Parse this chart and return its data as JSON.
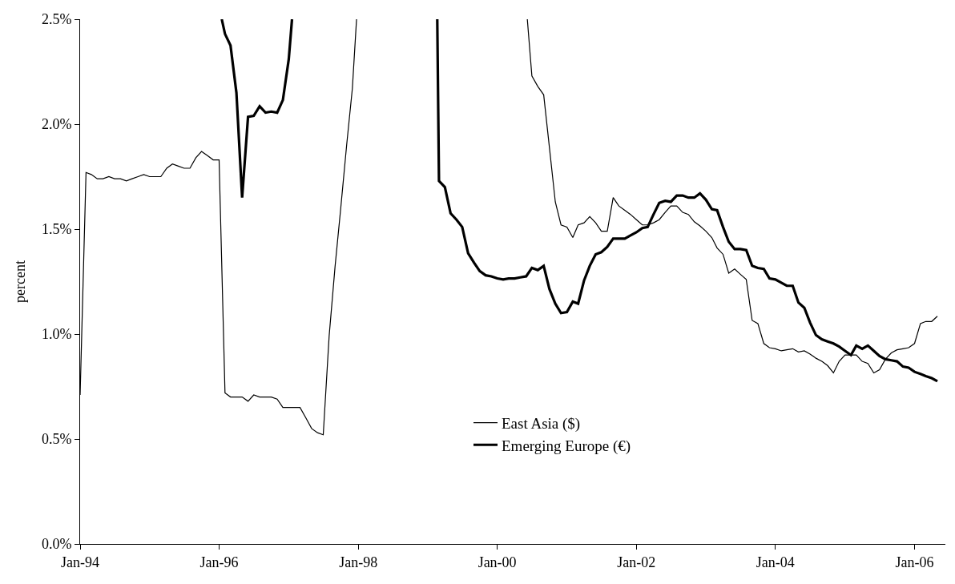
{
  "chart_data": {
    "type": "line",
    "ylabel": "percent",
    "xlim": [
      "1994-01-01",
      "2006-06-12"
    ],
    "xticks": [
      {
        "value": "1994-01-01",
        "label": "Jan-94"
      },
      {
        "value": "1996-01-01",
        "label": "Jan-96"
      },
      {
        "value": "1998-01-01",
        "label": "Jan-98"
      },
      {
        "value": "2000-01-01",
        "label": "Jan-00"
      },
      {
        "value": "2002-01-01",
        "label": "Jan-02"
      },
      {
        "value": "2004-01-01",
        "label": "Jan-04"
      },
      {
        "value": "2006-01-01",
        "label": "Jan-06"
      }
    ],
    "ylim": [
      0,
      2.5
    ],
    "yticks": [
      {
        "value": 0,
        "label": "0.0%"
      },
      {
        "value": 0.5,
        "label": "0.5%"
      },
      {
        "value": 1.0,
        "label": "1.0%"
      },
      {
        "value": 1.5,
        "label": "1.5%"
      },
      {
        "value": 2.0,
        "label": "2.0%"
      },
      {
        "value": 2.5,
        "label": "2.5%"
      }
    ],
    "legend": "bottom",
    "marker": "none",
    "line_style": "solid",
    "series": [
      {
        "name": "East Asia ($)",
        "color": "#000000",
        "x": [
          "1994-01",
          "1994-02",
          "1994-03",
          "1994-04",
          "1994-05",
          "1994-06",
          "1994-07",
          "1994-08",
          "1994-09",
          "1994-10",
          "1994-11",
          "1994-12",
          "1995-01",
          "1995-02",
          "1995-03",
          "1995-04",
          "1995-05",
          "1995-06",
          "1995-07",
          "1995-08",
          "1995-09",
          "1995-10",
          "1995-11",
          "1995-12",
          "1996-01",
          "1996-02",
          "1996-03",
          "1996-04",
          "1996-05",
          "1996-06",
          "1996-07",
          "1996-08",
          "1996-09",
          "1996-10",
          "1996-11",
          "1996-12",
          "1997-01",
          "1997-02",
          "1997-03",
          "1997-04",
          "1997-05",
          "1997-06",
          "1997-07",
          "1997-08",
          "1997-09",
          "1997-10",
          "1997-11",
          "1997-12",
          "1997-12-23",
          "1999-01",
          "2000-06-07",
          "2000-07",
          "2000-08",
          "2000-09",
          "2000-10",
          "2000-11",
          "2000-12",
          "2001-01",
          "2001-02",
          "2001-03",
          "2001-04",
          "2001-05",
          "2001-06",
          "2001-07",
          "2001-08",
          "2001-09",
          "2001-10",
          "2001-11",
          "2001-12",
          "2002-01",
          "2002-02",
          "2002-03",
          "2002-04",
          "2002-05",
          "2002-06",
          "2002-07",
          "2002-08",
          "2002-09",
          "2002-10",
          "2002-11",
          "2002-12",
          "2003-01",
          "2003-02",
          "2003-03",
          "2003-04",
          "2003-05",
          "2003-06",
          "2003-07",
          "2003-08",
          "2003-09",
          "2003-10",
          "2003-11",
          "2003-12",
          "2004-01",
          "2004-02",
          "2004-03",
          "2004-04",
          "2004-05",
          "2004-06",
          "2004-07",
          "2004-08",
          "2004-09",
          "2004-10",
          "2004-11",
          "2004-12",
          "2005-01",
          "2005-02",
          "2005-03",
          "2005-04",
          "2005-05",
          "2005-06",
          "2005-07",
          "2005-08",
          "2005-09",
          "2005-10",
          "2005-11",
          "2005-12",
          "2006-01",
          "2006-02",
          "2006-03",
          "2006-04",
          "2006-05"
        ],
        "values": [
          0.71,
          1.77,
          1.76,
          1.74,
          1.74,
          1.75,
          1.74,
          1.74,
          1.73,
          1.74,
          1.75,
          1.76,
          1.75,
          1.75,
          1.75,
          1.79,
          1.81,
          1.8,
          1.79,
          1.79,
          1.84,
          1.87,
          1.85,
          1.83,
          1.83,
          0.72,
          0.7,
          0.7,
          0.7,
          0.68,
          0.71,
          0.7,
          0.7,
          0.7,
          0.69,
          0.65,
          0.65,
          0.65,
          0.65,
          0.6,
          0.55,
          0.53,
          0.52,
          0.99,
          1.32,
          1.6,
          1.9,
          2.17,
          2.5,
          null,
          2.5,
          2.23,
          2.18,
          2.14,
          1.89,
          1.63,
          1.52,
          1.51,
          1.46,
          1.52,
          1.53,
          1.56,
          1.53,
          1.49,
          1.49,
          1.65,
          1.61,
          1.59,
          1.57,
          1.545,
          1.52,
          1.52,
          1.53,
          1.545,
          1.58,
          1.61,
          1.61,
          1.58,
          1.57,
          1.535,
          1.515,
          1.49,
          1.46,
          1.41,
          1.38,
          1.29,
          1.31,
          1.285,
          1.26,
          1.065,
          1.05,
          0.955,
          0.935,
          0.93,
          0.92,
          0.925,
          0.93,
          0.915,
          0.92,
          0.905,
          0.885,
          0.87,
          0.85,
          0.815,
          0.87,
          0.9,
          0.9,
          0.9,
          0.87,
          0.86,
          0.815,
          0.83,
          0.88,
          0.91,
          0.925,
          0.93,
          0.935,
          0.955,
          1.05,
          1.06,
          1.06,
          1.085
        ]
      },
      {
        "name": "Emerging Europe (€)",
        "color": "#000000",
        "x": [
          "1996-01-15",
          "1996-02",
          "1996-03",
          "1996-04",
          "1996-05",
          "1996-06",
          "1996-07",
          "1996-08",
          "1996-09",
          "1996-10",
          "1996-11",
          "1996-12",
          "1997-01",
          "1997-01-18",
          "1998-06",
          "1999-02-20",
          "1999-03",
          "1999-04",
          "1999-05",
          "1999-06",
          "1999-07",
          "1999-08",
          "1999-09",
          "1999-10",
          "1999-11",
          "1999-12",
          "2000-01",
          "2000-02",
          "2000-03",
          "2000-04",
          "2000-05",
          "2000-06",
          "2000-07",
          "2000-08",
          "2000-09",
          "2000-10",
          "2000-11",
          "2000-12",
          "2001-01",
          "2001-02",
          "2001-03",
          "2001-04",
          "2001-05",
          "2001-06",
          "2001-07",
          "2001-08",
          "2001-09",
          "2001-10",
          "2001-11",
          "2001-12",
          "2002-01",
          "2002-02",
          "2002-03",
          "2002-04",
          "2002-05",
          "2002-06",
          "2002-07",
          "2002-08",
          "2002-09",
          "2002-10",
          "2002-11",
          "2002-12",
          "2003-01",
          "2003-02",
          "2003-03",
          "2003-04",
          "2003-05",
          "2003-06",
          "2003-07",
          "2003-08",
          "2003-09",
          "2003-10",
          "2003-11",
          "2003-12",
          "2004-01",
          "2004-02",
          "2004-03",
          "2004-04",
          "2004-05",
          "2004-06",
          "2004-07",
          "2004-08",
          "2004-09",
          "2004-10",
          "2004-11",
          "2004-12",
          "2005-01",
          "2005-02",
          "2005-03",
          "2005-04",
          "2005-05",
          "2005-06",
          "2005-07",
          "2005-08",
          "2005-09",
          "2005-10",
          "2005-11",
          "2005-12",
          "2006-01",
          "2006-02",
          "2006-03",
          "2006-04",
          "2006-05"
        ],
        "values": [
          2.5,
          2.43,
          2.375,
          2.15,
          1.65,
          2.035,
          2.04,
          2.085,
          2.055,
          2.06,
          2.055,
          2.115,
          2.31,
          2.5,
          null,
          2.5,
          1.73,
          1.7,
          1.575,
          1.545,
          1.51,
          1.385,
          1.34,
          1.3,
          1.28,
          1.275,
          1.265,
          1.26,
          1.265,
          1.265,
          1.27,
          1.275,
          1.315,
          1.305,
          1.325,
          1.215,
          1.145,
          1.1,
          1.105,
          1.155,
          1.145,
          1.255,
          1.325,
          1.38,
          1.39,
          1.415,
          1.455,
          1.455,
          1.455,
          1.47,
          1.485,
          1.505,
          1.51,
          1.57,
          1.625,
          1.635,
          1.63,
          1.66,
          1.66,
          1.65,
          1.65,
          1.67,
          1.64,
          1.595,
          1.59,
          1.51,
          1.44,
          1.405,
          1.405,
          1.4,
          1.325,
          1.315,
          1.31,
          1.265,
          1.26,
          1.245,
          1.23,
          1.23,
          1.15,
          1.125,
          1.055,
          0.995,
          0.975,
          0.965,
          0.955,
          0.94,
          0.92,
          0.9,
          0.945,
          0.93,
          0.945,
          0.92,
          0.895,
          0.88,
          0.875,
          0.87,
          0.845,
          0.84,
          0.82,
          0.81,
          0.8,
          0.79,
          0.775
        ]
      }
    ]
  }
}
